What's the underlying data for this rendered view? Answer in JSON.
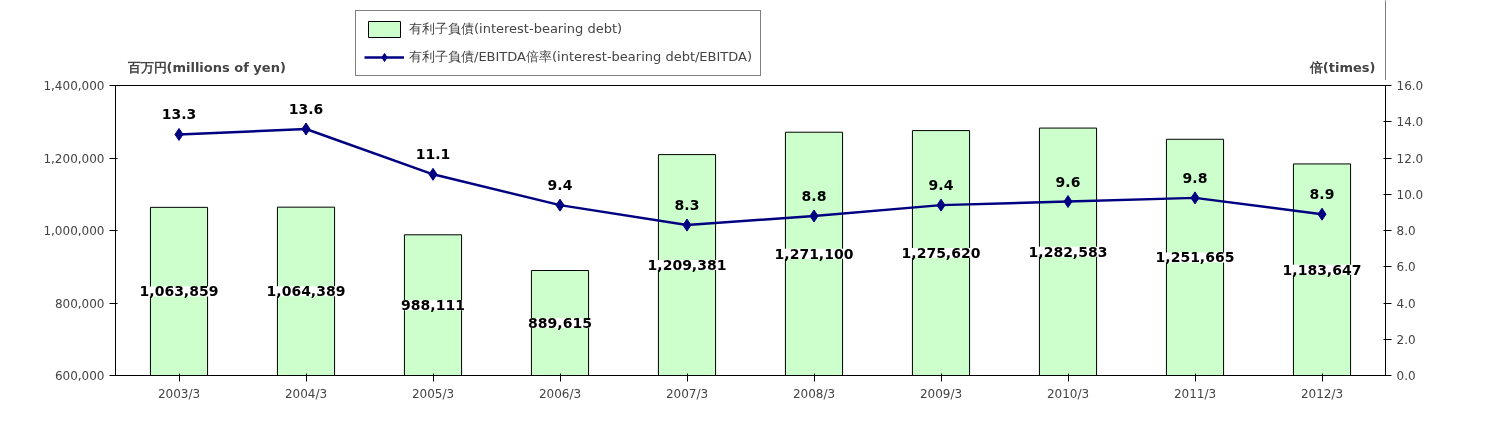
{
  "chart_data": {
    "type": "bar",
    "ylabel": "百万円(millions of yen)",
    "y2label": "倍(times)",
    "categories": [
      "2003/3",
      "2004/3",
      "2005/3",
      "2006/3",
      "2007/3",
      "2008/3",
      "2009/3",
      "2010/3",
      "2011/3",
      "2012/3"
    ],
    "series": [
      {
        "name": "有利子負債(interest-bearing debt)",
        "color": "#ccffcc",
        "values": [
          1063859,
          1064389,
          988111,
          889615,
          1209381,
          1271100,
          1275620,
          1282583,
          1251665,
          1183647
        ],
        "value_labels": [
          "1,063,859",
          "1,064,389",
          "988,111",
          "889,615",
          "1,209,381",
          "1,271,100",
          "1,275,620",
          "1,282,583",
          "1,251,665",
          "1,183,647"
        ]
      },
      {
        "name": "有利子負債/EBITDA倍率(interest-bearing debt/EBITDA)",
        "type": "line",
        "axis": "y2",
        "color": "#000080",
        "marker": "diamond",
        "values": [
          13.3,
          13.6,
          11.1,
          9.4,
          8.3,
          8.8,
          9.4,
          9.6,
          9.8,
          8.9
        ],
        "value_labels": [
          "13.3",
          "13.6",
          "11.1",
          "9.4",
          "8.3",
          "8.8",
          "9.4",
          "9.6",
          "9.8",
          "8.9"
        ]
      }
    ],
    "ylim": [
      600000,
      1400000
    ],
    "yticks": [
      {
        "value": 600000,
        "label": "600,000"
      },
      {
        "value": 800000,
        "label": "800,000"
      },
      {
        "value": 1000000,
        "label": "1,000,000"
      },
      {
        "value": 1200000,
        "label": "1,200,000"
      },
      {
        "value": 1400000,
        "label": "1,400,000"
      }
    ],
    "y2lim": [
      0,
      16
    ],
    "y2ticks": [
      {
        "value": 0,
        "label": "0.0"
      },
      {
        "value": 2,
        "label": "2.0"
      },
      {
        "value": 4,
        "label": "4.0"
      },
      {
        "value": 6,
        "label": "6.0"
      },
      {
        "value": 8,
        "label": "8.0"
      },
      {
        "value": 10,
        "label": "10.0"
      },
      {
        "value": 12,
        "label": "12.0"
      },
      {
        "value": 14,
        "label": "14.0"
      },
      {
        "value": 16,
        "label": "16.0"
      }
    ],
    "grid": false,
    "legend": "top",
    "line_style": "solid"
  }
}
